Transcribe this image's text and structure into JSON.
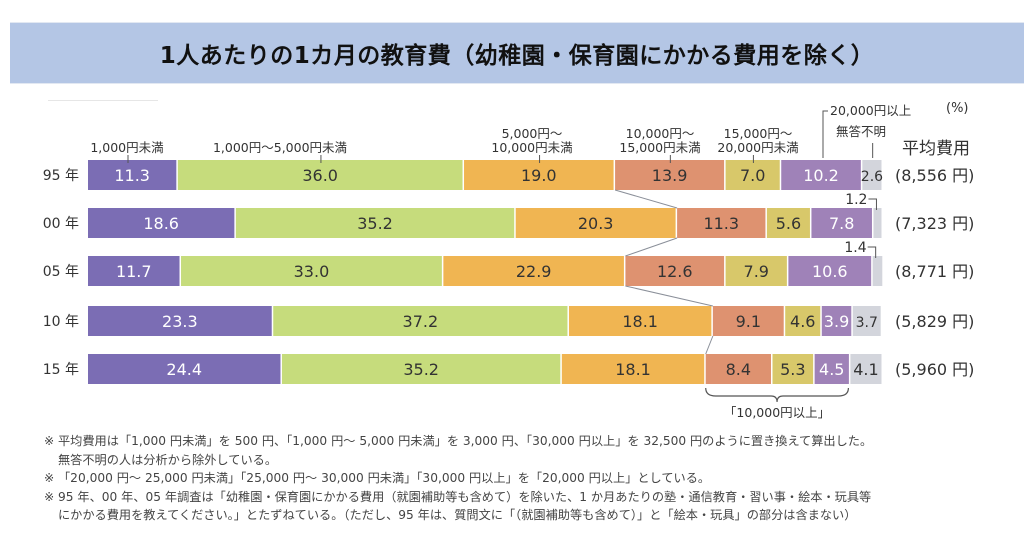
{
  "title": "1人あたりの1カ月の教育費（幼稚園・保育園にかかる費用を除く）",
  "chart_data": {
    "type": "bar",
    "orientation": "horizontal-stacked-100",
    "unit_label": "(%)",
    "categories": [
      "95 年",
      "00 年",
      "05 年",
      "10 年",
      "15 年"
    ],
    "series": [
      {
        "name": "1,000円未満",
        "label_lines": [
          "1,000円未満"
        ],
        "color": "#7b6db4",
        "text_color": "#ffffff",
        "values": [
          11.3,
          18.6,
          11.7,
          23.3,
          24.4
        ]
      },
      {
        "name": "1,000円～5,000円未満",
        "label_lines": [
          "1,000円～5,000円未満"
        ],
        "color": "#c6dc7c",
        "text_color": "#333333",
        "values": [
          36.0,
          35.2,
          33.0,
          37.2,
          35.2
        ]
      },
      {
        "name": "5,000円～10,000円未満",
        "label_lines": [
          "5,000円～",
          "10,000円未満"
        ],
        "color": "#f0b552",
        "text_color": "#333333",
        "values": [
          19.0,
          20.3,
          22.9,
          18.1,
          18.1
        ]
      },
      {
        "name": "10,000円～15,000円未満",
        "label_lines": [
          "10,000円～",
          "15,000円未満"
        ],
        "color": "#de9270",
        "text_color": "#333333",
        "values": [
          13.9,
          11.3,
          12.6,
          9.1,
          8.4
        ]
      },
      {
        "name": "15,000円～20,000円未満",
        "label_lines": [
          "15,000円～",
          "20,000円未満"
        ],
        "color": "#d8c86a",
        "text_color": "#333333",
        "values": [
          7.0,
          5.6,
          7.9,
          4.6,
          5.3
        ]
      },
      {
        "name": "20,000円以上",
        "label_lines": [
          "20,000円以上"
        ],
        "color": "#9f82b8",
        "text_color": "#ffffff",
        "values": [
          10.2,
          7.8,
          10.6,
          3.9,
          4.5
        ]
      },
      {
        "name": "無答不明",
        "label_lines": [
          "無答不明"
        ],
        "color": "#d3d5dc",
        "text_color": "#333333",
        "values": [
          2.6,
          1.2,
          1.4,
          3.7,
          4.1
        ]
      }
    ],
    "average_header": "平均費用",
    "averages": [
      "(8,556 円)",
      "(7,323 円)",
      "(8,771 円)",
      "(5,829 円)",
      "(5,960 円)"
    ],
    "small_value_callouts": [
      "1.2",
      "1.4"
    ],
    "bracket_label": "「10,000円以上」",
    "legend_placement": "top, labels above first bar"
  },
  "notes": [
    {
      "mark": "※",
      "lines": [
        "平均費用は「1,000 円未満」を 500 円、「1,000 円～ 5,000 円未満」を 3,000 円、「30,000 円以上」を 32,500 円のように置き換えて算出した。",
        "無答不明の人は分析から除外している。"
      ]
    },
    {
      "mark": "※",
      "lines": [
        "「20,000 円～ 25,000 円未満」「25,000 円～ 30,000 円未満」「30,000 円以上」を「20,000 円以上」としている。"
      ]
    },
    {
      "mark": "※",
      "lines": [
        "95 年、00 年、05 年調査は「幼稚園・保育園にかかる費用（就園補助等も含めて）を除いた、1 か月あたりの塾・通信教育・習い事・絵本・玩具等",
        "にかかる費用を教えてください。」とたずねている。（ただし、95 年は、質問文に「（就園補助等も含めて）」と「絵本・玩具」の部分は含まない）"
      ]
    }
  ]
}
